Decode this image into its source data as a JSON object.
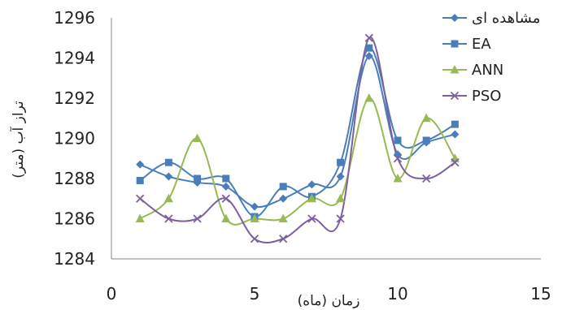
{
  "chart_data": {
    "type": "line",
    "xlabel": "زمان (ماه)",
    "ylabel": "تراز آب (متر)",
    "xlim": [
      0,
      15
    ],
    "ylim": [
      1284,
      1296
    ],
    "x_ticks": [
      "0",
      "5",
      "10",
      "15"
    ],
    "y_ticks": [
      "1284",
      "1286",
      "1288",
      "1290",
      "1292",
      "1294",
      "1296"
    ],
    "grid": false,
    "legend_position": "top-right",
    "x": [
      1,
      2,
      3,
      4,
      5,
      6,
      7,
      8,
      9,
      10,
      11,
      12
    ],
    "series": [
      {
        "name": "مشاهده ای",
        "color": "#4a7ebb",
        "marker": "diamond",
        "values": [
          1288.7,
          1288.1,
          1287.8,
          1287.6,
          1286.6,
          1287.0,
          1287.7,
          1288.1,
          1294.1,
          1289.2,
          1289.8,
          1290.2
        ]
      },
      {
        "name": "EA",
        "color": "#4a7ebb",
        "marker": "square",
        "values": [
          1287.9,
          1288.8,
          1288.0,
          1288.0,
          1286.1,
          1287.6,
          1287.1,
          1288.8,
          1294.5,
          1289.9,
          1289.9,
          1290.7
        ]
      },
      {
        "name": "ANN",
        "color": "#98b954",
        "marker": "triangle",
        "values": [
          1286.0,
          1287.0,
          1290.0,
          1286.0,
          1286.0,
          1286.0,
          1287.0,
          1287.0,
          1292.0,
          1288.0,
          1291.0,
          1289.0
        ]
      },
      {
        "name": "PSO",
        "color": "#7d60a0",
        "marker": "x",
        "values": [
          1287.0,
          1286.0,
          1286.0,
          1287.0,
          1285.0,
          1285.0,
          1286.0,
          1286.0,
          1295.0,
          1289.0,
          1288.0,
          1288.8
        ]
      }
    ]
  }
}
